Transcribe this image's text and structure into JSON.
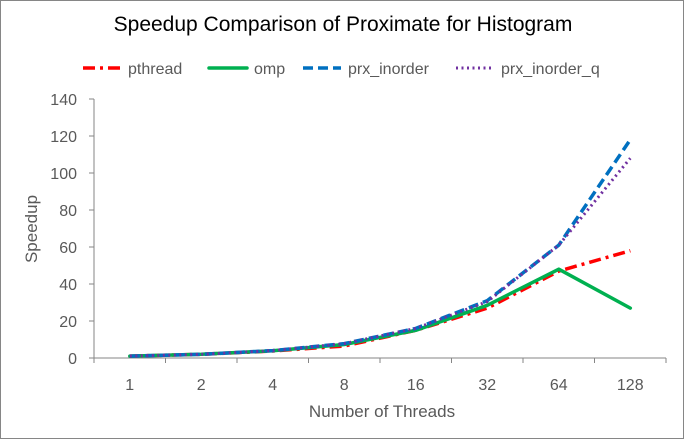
{
  "chart_data": {
    "type": "line",
    "title": "Speedup Comparison of Proximate for Histogram",
    "xlabel": "Number of Threads",
    "ylabel": "Speedup",
    "categories": [
      "1",
      "2",
      "4",
      "8",
      "16",
      "32",
      "64",
      "128"
    ],
    "ylim": [
      0,
      140
    ],
    "yticks": [
      "0",
      "20",
      "40",
      "60",
      "80",
      "100",
      "120",
      "140"
    ],
    "grid": false,
    "legend_position": "top",
    "series": [
      {
        "name": "pthread",
        "style": "dash-dot",
        "color": "#ff0000",
        "values": [
          1,
          2,
          3.8,
          6.5,
          15,
          27,
          47,
          58
        ]
      },
      {
        "name": "omp",
        "style": "solid",
        "color": "#00b050",
        "values": [
          1,
          2,
          3.9,
          7.3,
          15,
          28.5,
          48,
          27
        ]
      },
      {
        "name": "prx_inorder",
        "style": "dash",
        "color": "#0070c0",
        "values": [
          1,
          2,
          4,
          7.8,
          16,
          31,
          61,
          118
        ]
      },
      {
        "name": "prx_inorder_q",
        "style": "dot",
        "color": "#7030a0",
        "values": [
          1,
          2,
          4,
          7.8,
          16,
          30.5,
          61,
          108
        ]
      }
    ]
  }
}
